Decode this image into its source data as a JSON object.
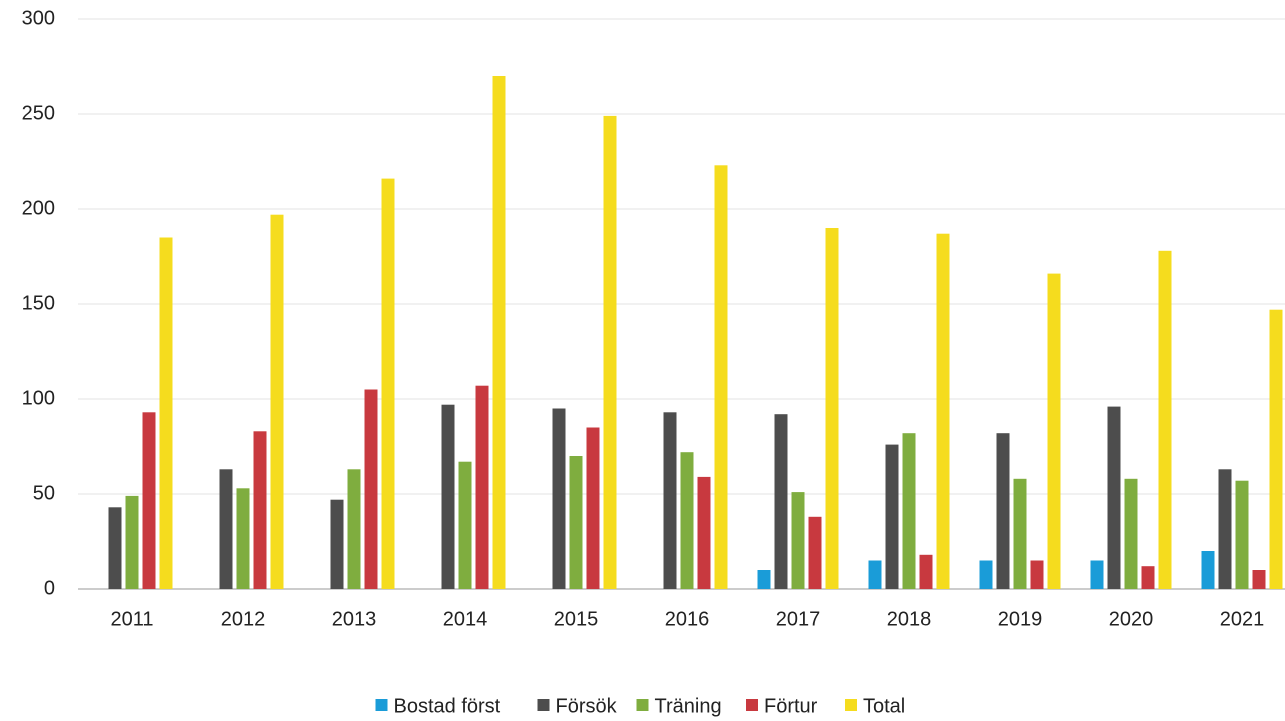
{
  "chart_data": {
    "type": "bar",
    "categories": [
      "2011",
      "2012",
      "2013",
      "2014",
      "2015",
      "2016",
      "2017",
      "2018",
      "2019",
      "2020",
      "2021"
    ],
    "series": [
      {
        "name": "Bostad först",
        "color": "#1a9cd8",
        "values": [
          null,
          null,
          null,
          null,
          null,
          null,
          10,
          15,
          15,
          15,
          20
        ]
      },
      {
        "name": "Försök",
        "color": "#4d4d4d",
        "values": [
          43,
          63,
          47,
          97,
          95,
          93,
          92,
          76,
          82,
          96,
          63
        ]
      },
      {
        "name": "Träning",
        "color": "#7fad3f",
        "values": [
          49,
          53,
          63,
          67,
          70,
          72,
          51,
          82,
          58,
          58,
          57
        ]
      },
      {
        "name": "Förtur",
        "color": "#c8393f",
        "values": [
          93,
          83,
          105,
          107,
          85,
          59,
          38,
          18,
          15,
          12,
          10
        ]
      },
      {
        "name": "Total",
        "color": "#f5dc1e",
        "values": [
          185,
          197,
          216,
          270,
          249,
          223,
          190,
          187,
          166,
          178,
          147
        ]
      }
    ],
    "ylim": [
      0,
      300
    ],
    "yticks": [
      0,
      50,
      100,
      150,
      200,
      250,
      300
    ],
    "grid": true,
    "legend": "bottom"
  }
}
